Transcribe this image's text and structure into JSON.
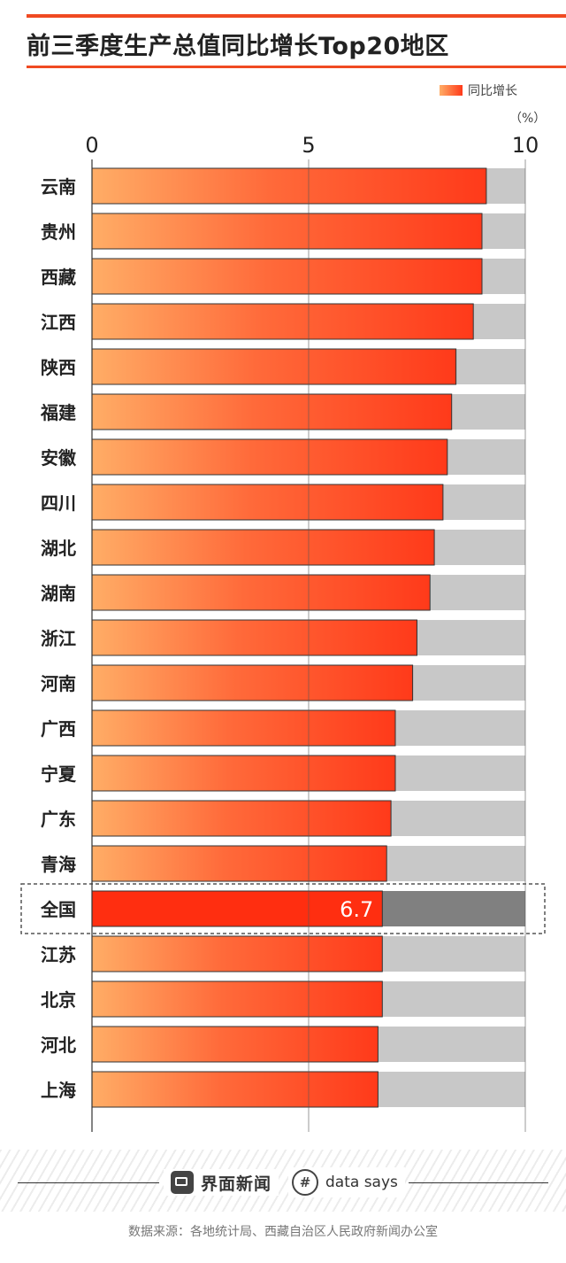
{
  "title": "前三季度生产总值同比增长Top20地区",
  "legend": {
    "label": "同比增长"
  },
  "unit": "（%）",
  "highlight_label": "6.7",
  "brand": {
    "name": "界面新闻",
    "partner": "data says",
    "partner_icon": "datasays-logo-icon"
  },
  "source": "数据来源：各地统计局、西藏自治区人民政府新闻办公室",
  "colors": {
    "accent": "#f04a22",
    "bar_start": "#ffad66",
    "bar_end": "#ff3a1a",
    "highlight_bar": "#ff2e10",
    "track": "#c8c8c8",
    "highlight_track": "#808080"
  },
  "chart_data": {
    "type": "bar",
    "orientation": "horizontal",
    "title": "前三季度生产总值同比增长Top20地区",
    "xlim": [
      0,
      10
    ],
    "xticks": [
      "0",
      "5",
      "10"
    ],
    "categories": [
      "云南",
      "贵州",
      "西藏",
      "江西",
      "陕西",
      "福建",
      "安徽",
      "四川",
      "湖北",
      "湖南",
      "浙江",
      "河南",
      "广西",
      "宁夏",
      "广东",
      "青海",
      "全国",
      "江苏",
      "北京",
      "河北",
      "上海"
    ],
    "series": [
      {
        "name": "同比增长",
        "values": [
          9.1,
          9.0,
          9.0,
          8.8,
          8.4,
          8.3,
          8.2,
          8.1,
          7.9,
          7.8,
          7.5,
          7.4,
          7.0,
          7.0,
          6.9,
          6.8,
          6.7,
          6.7,
          6.7,
          6.6,
          6.6
        ]
      }
    ],
    "highlight_category": "全国",
    "legend_position": "top-right",
    "grid": true
  }
}
